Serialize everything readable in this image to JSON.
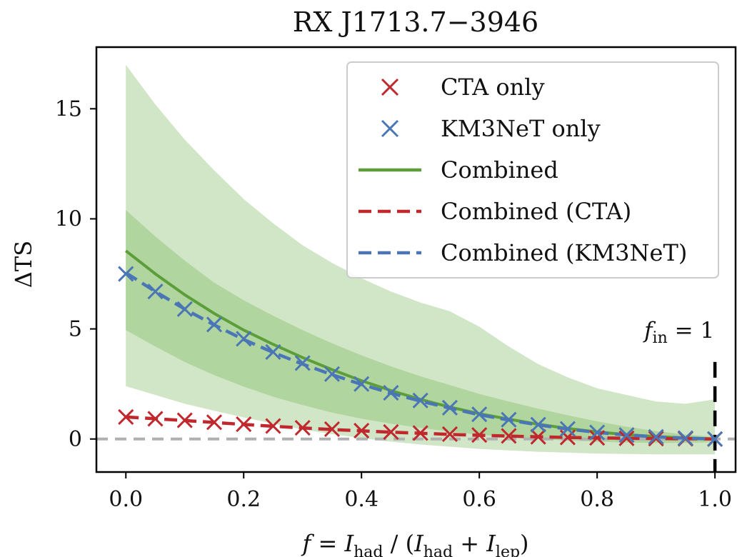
{
  "chart_data": {
    "type": "line",
    "title": "RX J1713.7−3946",
    "ylabel": "ΔTS",
    "xlabel": {
      "f": "f",
      "eq": " = ",
      "I1": "I",
      "had1": "had",
      "mid": " / (",
      "I2": "I",
      "had2": "had",
      "plus": " + ",
      "I3": "I",
      "lep": "lep",
      "close": ")"
    },
    "xlim": [
      -0.05,
      1.035
    ],
    "ylim": [
      -1.5,
      17.8
    ],
    "xticks": [
      "0.0",
      "0.2",
      "0.4",
      "0.6",
      "0.8",
      "1.0"
    ],
    "xtick_values": [
      0.0,
      0.2,
      0.4,
      0.6,
      0.8,
      1.0
    ],
    "yticks": [
      "0",
      "5",
      "10",
      "15"
    ],
    "ytick_values": [
      0,
      5,
      10,
      15
    ],
    "grid": false,
    "legend_position": "top-right",
    "colors": {
      "cta": "#c0282d",
      "km3net": "#4a76b5",
      "combined": "#5c9e3a",
      "band_inner": "#a6cf92",
      "band_outer": "#cfe5c4",
      "zero_line": "#b0b0b0",
      "f_in_line": "#000000"
    },
    "x": [
      0.0,
      0.05,
      0.1,
      0.15,
      0.2,
      0.25,
      0.3,
      0.35,
      0.4,
      0.45,
      0.5,
      0.55,
      0.6,
      0.65,
      0.7,
      0.75,
      0.8,
      0.85,
      0.9,
      0.95,
      1.0
    ],
    "series": [
      {
        "name": "CTA only",
        "style": "markers",
        "values": [
          1.0,
          0.92,
          0.85,
          0.76,
          0.67,
          0.59,
          0.51,
          0.45,
          0.38,
          0.32,
          0.27,
          0.22,
          0.18,
          0.14,
          0.1,
          0.07,
          0.05,
          0.03,
          0.02,
          0.01,
          0.0
        ]
      },
      {
        "name": "KM3NeT only",
        "style": "markers",
        "values": [
          7.5,
          6.7,
          5.9,
          5.2,
          4.55,
          3.95,
          3.45,
          2.95,
          2.5,
          2.1,
          1.75,
          1.42,
          1.12,
          0.88,
          0.65,
          0.46,
          0.3,
          0.18,
          0.1,
          0.04,
          0.0
        ]
      },
      {
        "name": "Combined",
        "style": "solid",
        "values": [
          8.55,
          7.5,
          6.55,
          5.7,
          4.95,
          4.3,
          3.7,
          3.15,
          2.65,
          2.2,
          1.8,
          1.45,
          1.15,
          0.9,
          0.67,
          0.48,
          0.32,
          0.2,
          0.11,
          0.05,
          0.0
        ]
      },
      {
        "name": "Combined (CTA)",
        "style": "dashed",
        "values": [
          1.0,
          0.92,
          0.84,
          0.75,
          0.66,
          0.58,
          0.5,
          0.43,
          0.37,
          0.31,
          0.26,
          0.21,
          0.17,
          0.13,
          0.1,
          0.07,
          0.05,
          0.03,
          0.02,
          0.01,
          0.0
        ]
      },
      {
        "name": "Combined (KM3NeT)",
        "style": "dashed",
        "values": [
          7.55,
          6.7,
          5.9,
          5.18,
          4.52,
          3.93,
          3.4,
          2.92,
          2.48,
          2.08,
          1.72,
          1.4,
          1.1,
          0.86,
          0.64,
          0.45,
          0.3,
          0.18,
          0.1,
          0.04,
          0.0
        ]
      }
    ],
    "bands": [
      {
        "level": "outer",
        "lower": [
          2.4,
          2.0,
          1.6,
          1.28,
          0.98,
          0.7,
          0.44,
          0.22,
          0.04,
          -0.12,
          -0.25,
          -0.35,
          -0.45,
          -0.52,
          -0.58,
          -0.62,
          -0.66,
          -0.68,
          -0.7,
          -0.7,
          -0.7
        ],
        "upper": [
          17.0,
          15.2,
          13.6,
          12.2,
          10.9,
          9.8,
          8.8,
          8.0,
          7.3,
          6.7,
          6.2,
          5.8,
          5.1,
          4.2,
          3.4,
          2.8,
          2.3,
          2.0,
          1.7,
          1.6,
          1.8
        ]
      },
      {
        "level": "inner",
        "lower": [
          4.95,
          4.2,
          3.5,
          2.9,
          2.38,
          1.92,
          1.54,
          1.2,
          0.92,
          0.7,
          0.5,
          0.34,
          0.2,
          0.09,
          0.0,
          -0.07,
          -0.12,
          -0.16,
          -0.18,
          -0.18,
          -0.15
        ],
        "upper": [
          10.4,
          9.2,
          8.1,
          7.1,
          6.3,
          5.6,
          4.95,
          4.35,
          3.8,
          3.3,
          2.85,
          2.45,
          2.05,
          1.7,
          1.38,
          1.08,
          0.8,
          0.56,
          0.36,
          0.2,
          0.1
        ]
      }
    ],
    "reference_lines": {
      "zero_y": 0,
      "f_in_x": 1.0
    },
    "annotation": {
      "f": "f",
      "sub": "in",
      "rest": " = 1",
      "x": 1.0,
      "y": 4.6
    }
  }
}
